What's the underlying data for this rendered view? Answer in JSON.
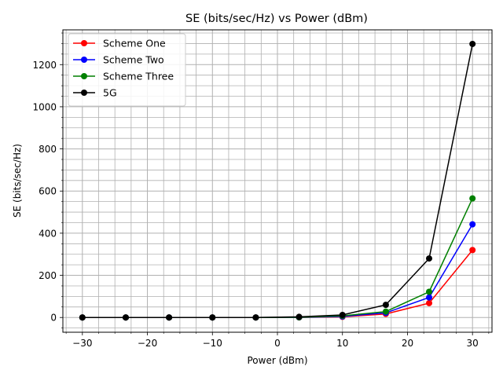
{
  "chart_data": {
    "type": "line",
    "title": "SE (bits/sec/Hz) vs Power (dBm)",
    "xlabel": "Power (dBm)",
    "ylabel": "SE (bits/sec/Hz)",
    "xlim": [
      -33,
      33
    ],
    "ylim": [
      -70,
      1365
    ],
    "xticks": [
      -30,
      -20,
      -10,
      0,
      10,
      20,
      30
    ],
    "xtick_labels": [
      "−30",
      "−20",
      "−10",
      "0",
      "10",
      "20",
      "30"
    ],
    "yticks": [
      0,
      200,
      400,
      600,
      800,
      1000,
      1200
    ],
    "ytick_labels": [
      "0",
      "200",
      "400",
      "600",
      "800",
      "1000",
      "1200"
    ],
    "x_minor_step": 2.5,
    "y_minor_step": 50,
    "grid": "major and minor",
    "legend_position": "top-left",
    "x": [
      -30,
      -23.33,
      -16.67,
      -10,
      -3.33,
      3.33,
      10,
      16.67,
      23.33,
      30
    ],
    "series": [
      {
        "name": "Scheme One",
        "color": "#ff0000",
        "values": [
          0,
          0,
          0,
          0,
          0,
          0.5,
          3,
          17,
          68,
          320
        ]
      },
      {
        "name": "Scheme Two",
        "color": "#0000ff",
        "values": [
          0,
          0,
          0,
          0,
          0,
          0.6,
          5,
          22,
          95,
          442
        ]
      },
      {
        "name": "Scheme Three",
        "color": "#008000",
        "values": [
          0,
          0,
          0,
          0,
          0,
          1,
          8,
          28,
          122,
          565
        ]
      },
      {
        "name": "5G",
        "color": "#000000",
        "values": [
          0,
          0,
          0,
          0,
          0,
          3,
          12,
          60,
          280,
          1298
        ]
      }
    ]
  }
}
